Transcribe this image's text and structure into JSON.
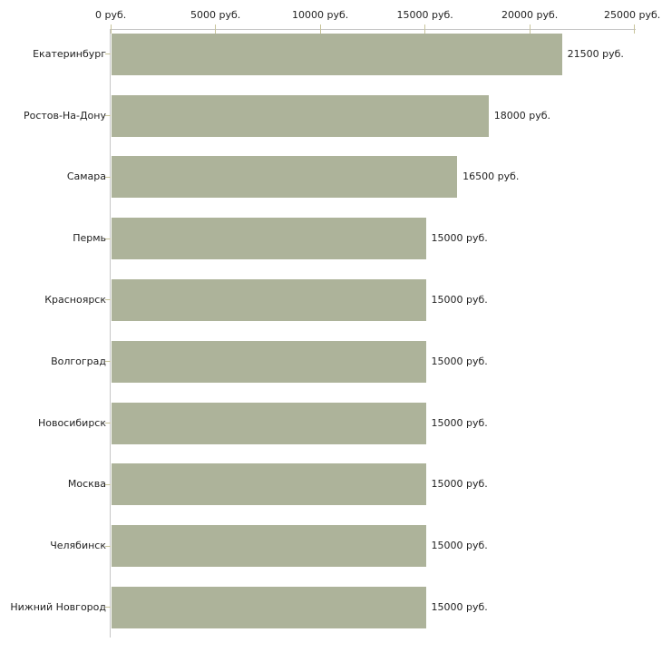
{
  "chart_data": {
    "type": "bar",
    "orientation": "horizontal",
    "categories": [
      "Екатеринбург",
      "Ростов-На-Дону",
      "Самара",
      "Пермь",
      "Красноярск",
      "Волгоград",
      "Новосибирск",
      "Москва",
      "Челябинск",
      "Нижний Новгород"
    ],
    "values": [
      21500,
      18000,
      16500,
      15000,
      15000,
      15000,
      15000,
      15000,
      15000,
      15000
    ],
    "bar_labels": [
      "21500 руб.",
      "18000 руб.",
      "16500 руб.",
      "15000 руб.",
      "15000 руб.",
      "15000 руб.",
      "15000 руб.",
      "15000 руб.",
      "15000 руб.",
      "15000 руб."
    ],
    "x_axis": {
      "position": "top",
      "min": 0,
      "max": 25000,
      "tick_values": [
        0,
        5000,
        10000,
        15000,
        20000,
        25000
      ],
      "tick_labels": [
        "0 руб.",
        "5000 руб.",
        "10000 руб.",
        "15000 руб.",
        "20000 руб.",
        "25000 руб."
      ]
    },
    "grid": false,
    "legend": false,
    "colors": {
      "bar": "#adb39a",
      "axis_line": "#c6c6c6",
      "tick": "#c8c49a",
      "text": "#222222",
      "background": "#ffffff"
    }
  }
}
